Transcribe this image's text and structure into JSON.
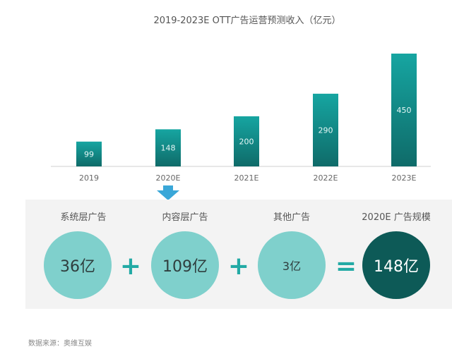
{
  "chart_data": {
    "type": "bar",
    "title": "2019-2023E OTT广告运营预测收入（亿元）",
    "categories": [
      "2019",
      "2020E",
      "2021E",
      "2022E",
      "2023E"
    ],
    "values": [
      99,
      148,
      200,
      290,
      450
    ],
    "ylim": [
      0,
      450
    ],
    "grid": false,
    "colors": {
      "bar_top": "#16a5a1",
      "bar_bottom": "#0f6b69"
    }
  },
  "breakdown": {
    "items": [
      {
        "label": "系统层广告",
        "value": "36亿"
      },
      {
        "label": "内容层广告",
        "value": "109亿"
      },
      {
        "label": "其他广告",
        "value": "3亿"
      },
      {
        "label": "2020E 广告规模",
        "value": "148亿"
      }
    ],
    "operators": [
      "+",
      "+",
      "="
    ],
    "colors": {
      "circle": "#7fd0cc",
      "total": "#0d5a57",
      "operator": "#23aaa5",
      "arrow": "#3aa7d8"
    }
  },
  "source": "数据来源：奥维互娱"
}
